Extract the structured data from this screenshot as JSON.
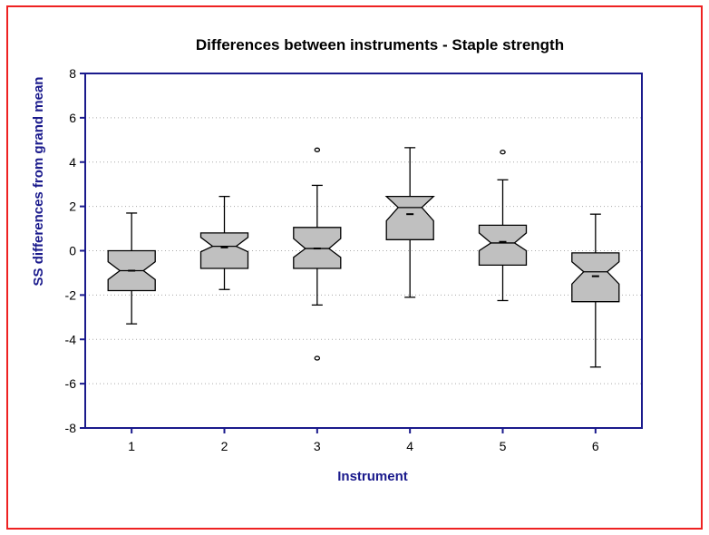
{
  "chart_data": {
    "type": "boxplot",
    "notched": true,
    "title": "Differences between instruments - Staple strength",
    "xlabel": "Instrument",
    "ylabel": "SS differences from grand mean",
    "ylim": [
      -8,
      8
    ],
    "yticks": [
      -8,
      -6,
      -4,
      -2,
      0,
      2,
      4,
      6,
      8
    ],
    "categories": [
      "1",
      "2",
      "3",
      "4",
      "5",
      "6"
    ],
    "grid": "horizontal dotted",
    "colors": {
      "axis": "#1a1a8c",
      "box_fill": "#c0c0c0",
      "frame": "#ee2222",
      "gridline": "#aaaaaa"
    },
    "boxes": [
      {
        "category": "1",
        "whisker_low": -3.3,
        "q1": -1.8,
        "median": -0.9,
        "q3": 0.0,
        "whisker_high": 1.7,
        "notch_low": -1.3,
        "notch_high": -0.5,
        "mean": -0.9,
        "outliers": []
      },
      {
        "category": "2",
        "whisker_low": -1.75,
        "q1": -0.8,
        "median": 0.2,
        "q3": 0.8,
        "whisker_high": 2.45,
        "notch_low": -0.05,
        "notch_high": 0.6,
        "mean": 0.15,
        "outliers": []
      },
      {
        "category": "3",
        "whisker_low": -2.45,
        "q1": -0.8,
        "median": 0.1,
        "q3": 1.05,
        "whisker_high": 2.95,
        "notch_low": -0.3,
        "notch_high": 0.55,
        "mean": 0.1,
        "outliers": [
          4.55,
          -4.85
        ]
      },
      {
        "category": "4",
        "whisker_low": -2.1,
        "q1": 0.5,
        "median": 1.95,
        "q3": 2.45,
        "whisker_high": 4.65,
        "notch_low": 1.35,
        "notch_high": 2.45,
        "mean": 1.65,
        "outliers": []
      },
      {
        "category": "5",
        "whisker_low": -2.25,
        "q1": -0.65,
        "median": 0.35,
        "q3": 1.15,
        "whisker_high": 3.2,
        "notch_low": 0.0,
        "notch_high": 0.8,
        "mean": 0.4,
        "outliers": [
          4.45
        ]
      },
      {
        "category": "6",
        "whisker_low": -5.25,
        "q1": -2.3,
        "median": -0.95,
        "q3": -0.1,
        "whisker_high": 1.65,
        "notch_low": -1.5,
        "notch_high": -0.5,
        "mean": -1.15,
        "outliers": []
      }
    ]
  }
}
